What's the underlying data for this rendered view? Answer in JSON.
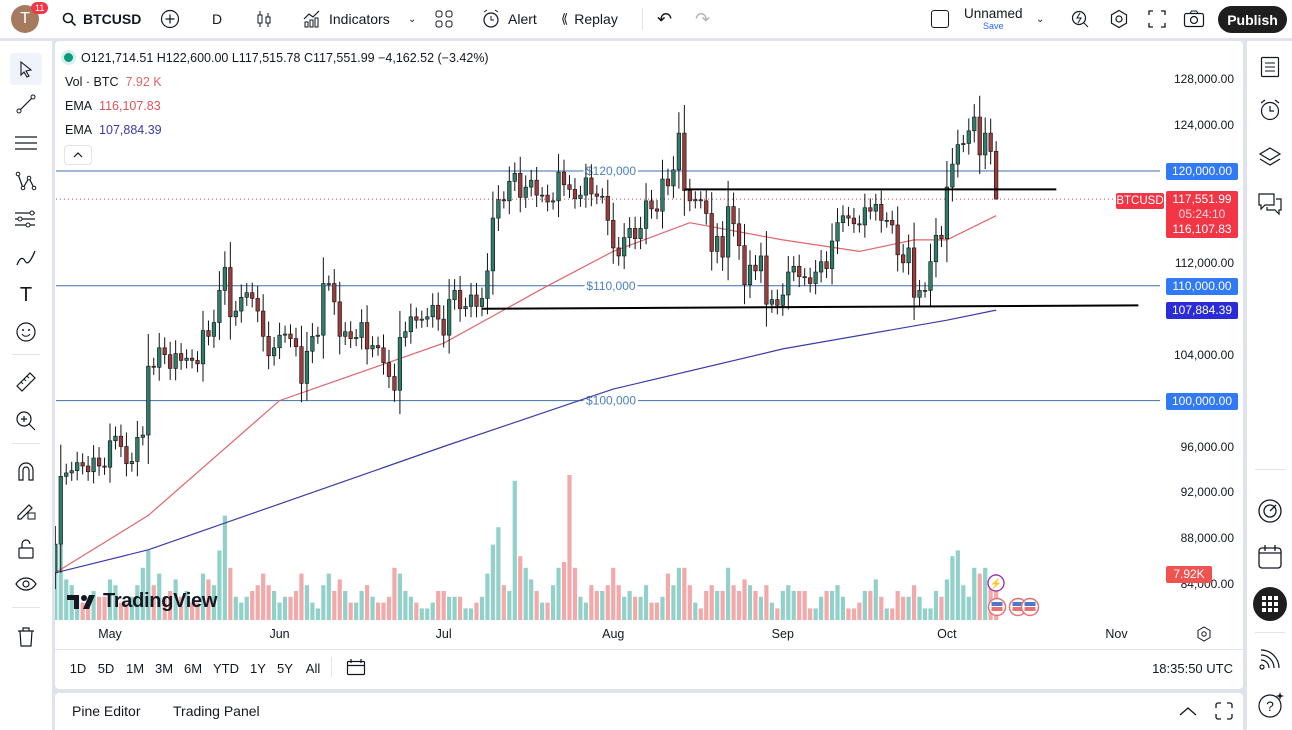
{
  "topbar": {
    "avatar_letter": "T",
    "notification_count": "11",
    "symbol": "BTCUSD",
    "interval": "D",
    "indicators_label": "Indicators",
    "alert_label": "Alert",
    "replay_label": "Replay",
    "layout_name": "Unnamed",
    "save_label": "Save",
    "publish_label": "Publish"
  },
  "legend": {
    "open": "O121,714.51",
    "high": "H122,600.00",
    "low": "L117,515.78",
    "close": "C117,551.99",
    "change": "−4,162.52 (−3.42%)",
    "vol_label": "Vol · BTC",
    "vol_value": "7.92 K",
    "ema1_label": "EMA",
    "ema1_value": "116,107.83",
    "ema2_label": "EMA",
    "ema2_value": "107,884.39"
  },
  "price_axis": {
    "ticks": [
      "128,000.00",
      "124,000.00",
      "112,000.00",
      "104,000.00",
      "96,000.00",
      "92,000.00",
      "88,000.00",
      "84,000.00"
    ],
    "tick_values": [
      128000,
      124000,
      112000,
      104000,
      96000,
      92000,
      88000,
      84000
    ],
    "level_badges": [
      {
        "label": "120,000.00",
        "value": 120000,
        "color": "#3179f5"
      },
      {
        "label": "110,000.00",
        "value": 110000,
        "color": "#3179f5"
      },
      {
        "label": "100,000.00",
        "value": 100000,
        "color": "#3179f5"
      },
      {
        "label": "107,884.39",
        "value": 107884.39,
        "color": "#2b2bd9"
      }
    ],
    "symbol_tag": "BTCUSD",
    "last_price": "117,551.99",
    "countdown": "05:24:10",
    "ema1_badge": "116,107.83",
    "volume_badge": "7.92K"
  },
  "time_axis": {
    "labels": [
      [
        "May",
        "May 1"
      ],
      [
        "Jun",
        "Jun 1"
      ],
      [
        "Jul",
        "Jul 1"
      ],
      [
        "Aug",
        "Aug 1"
      ],
      [
        "Sep",
        "Sep 1"
      ],
      [
        "Oct",
        "Oct 1"
      ],
      [
        "Nov",
        "Nov 1"
      ]
    ]
  },
  "drawings": {
    "horizontal_levels": [
      {
        "label": "$120,000",
        "value": 120000
      },
      {
        "label": "$110,000",
        "value": 110000
      },
      {
        "label": "$100,000",
        "value": 100000
      }
    ],
    "trendlines": [
      {
        "from": [
          "Aug 14",
          118400
        ],
        "to": [
          "Oct 21",
          118400
        ]
      },
      {
        "from": [
          "Jul 8",
          108000
        ],
        "to": [
          "Nov 5",
          108300
        ]
      }
    ]
  },
  "bottom_bar": {
    "ranges": [
      "1D",
      "5D",
      "1M",
      "3M",
      "6M",
      "YTD",
      "1Y",
      "5Y",
      "All"
    ],
    "clock": "18:35:50 UTC"
  },
  "bottom_panel": {
    "pine_editor": "Pine Editor",
    "trading_panel": "Trading Panel"
  },
  "watermark": "TradingView",
  "colors": {
    "up": "#2e7d6b",
    "down": "#9b3b3b",
    "vol_up": "#92d1c9",
    "vol_down": "#f2a9a9",
    "ema_fast": "#e0646b",
    "ema_slow": "#3b3ba8",
    "level": "#3d6fa8",
    "accent": "#2962ff",
    "last_price": "#f23645"
  },
  "chart_data": {
    "type": "candlestick",
    "symbol": "BTCUSD",
    "interval": "D",
    "last_bar": {
      "open": 121714.51,
      "high": 122600.0,
      "low": 117515.78,
      "close": 117551.99
    },
    "months": [
      {
        "month": "Apr",
        "start_day": 21,
        "closes": [
          87500,
          93400,
          93700,
          93900,
          94600,
          94300,
          93800,
          95000,
          94300,
          94200
        ],
        "volume_k": [
          9,
          13,
          7,
          6,
          4,
          3,
          3,
          5,
          4,
          4
        ]
      },
      {
        "month": "May",
        "start_day": 1,
        "closes": [
          96500,
          96900,
          96000,
          94500,
          94700,
          96800,
          97000,
          103000,
          102900,
          104600,
          104000,
          102800,
          104100,
          103500,
          103700,
          103500,
          103200,
          106100,
          105600,
          106800,
          109600,
          111600,
          107300,
          107800,
          109000,
          109400,
          108900,
          107800,
          105600,
          103900,
          104600
        ],
        "volume_k": [
          7,
          6,
          3,
          3,
          4,
          6,
          9,
          12,
          6,
          8,
          4,
          5,
          7,
          4,
          5,
          3,
          3,
          8,
          7,
          6,
          12,
          18,
          9,
          4,
          3,
          4,
          5,
          6,
          8,
          6,
          5
        ]
      },
      {
        "month": "Jun",
        "start_day": 1,
        "closes": [
          105700,
          105800,
          105400,
          104700,
          101500,
          104300,
          105600,
          105700,
          110200,
          110200,
          108600,
          105600,
          106000,
          105400,
          105500,
          106800,
          104500,
          104800,
          104600,
          103300,
          102100,
          100900,
          105500,
          106000,
          107300,
          107000,
          107100,
          107300,
          108300,
          107100
        ],
        "volume_k": [
          3,
          4,
          4,
          5,
          8,
          6,
          3,
          2,
          6,
          8,
          5,
          7,
          5,
          3,
          3,
          5,
          6,
          4,
          3,
          3,
          4,
          9,
          8,
          5,
          4,
          3,
          2,
          2,
          3,
          5
        ]
      },
      {
        "month": "Jul",
        "start_day": 1,
        "closes": [
          105700,
          108800,
          109600,
          108000,
          108200,
          109200,
          108200,
          108900,
          111300,
          115900,
          117500,
          117400,
          119100,
          119800,
          117700,
          118600,
          119200,
          117900,
          117900,
          117300,
          117400,
          119900,
          118800,
          118400,
          117600,
          117900,
          119400,
          118000,
          117800,
          117800,
          115700
        ],
        "volume_k": [
          5,
          4,
          4,
          4,
          2,
          2,
          3,
          4,
          8,
          13,
          16,
          6,
          5,
          24,
          11,
          9,
          7,
          5,
          3,
          3,
          6,
          9,
          10,
          25,
          9,
          4,
          3,
          6,
          5,
          5,
          6
        ]
      },
      {
        "month": "Aug",
        "start_day": 1,
        "closes": [
          113300,
          112600,
          114200,
          115000,
          114100,
          115000,
          117400,
          116700,
          116500,
          119300,
          118700,
          120100,
          123300,
          118300,
          117400,
          117500,
          117400,
          116300,
          113000,
          114300,
          112500,
          116900,
          115400,
          113500,
          110100,
          111800,
          111300,
          112600,
          108400,
          108800,
          108300
        ],
        "volume_k": [
          9,
          6,
          4,
          5,
          4,
          4,
          6,
          3,
          3,
          4,
          8,
          6,
          9,
          9,
          6,
          3,
          2,
          5,
          6,
          5,
          5,
          9,
          6,
          5,
          7,
          6,
          5,
          4,
          6,
          3,
          2
        ]
      },
      {
        "month": "Sep",
        "start_day": 1,
        "closes": [
          109200,
          111200,
          111700,
          110800,
          110700,
          110200,
          111200,
          112100,
          111500,
          113900,
          115500,
          116100,
          115900,
          115400,
          115300,
          116800,
          116500,
          117100,
          115700,
          115700,
          115300,
          112700,
          112000,
          113300,
          109000,
          109600,
          109600,
          112100,
          114400,
          114100
        ],
        "volume_k": [
          5,
          6,
          5,
          5,
          5,
          2,
          2,
          4,
          5,
          5,
          6,
          4,
          2,
          2,
          3,
          5,
          5,
          7,
          4,
          2,
          2,
          5,
          4,
          4,
          6,
          4,
          2,
          2,
          5,
          4
        ]
      },
      {
        "month": "Oct",
        "start_day": 1,
        "closes": [
          118600,
          120600,
          122300,
          122400,
          123500,
          124700,
          121400,
          123300,
          121700,
          117551.99
        ],
        "volume_k": [
          7,
          11,
          12,
          6,
          4,
          9,
          8,
          9,
          7,
          7.92
        ]
      }
    ],
    "ema_fast": [
      [
        "Apr 21",
        85000
      ],
      [
        "May 8",
        90000
      ],
      [
        "Jun 1",
        100000
      ],
      [
        "Jul 1",
        105000
      ],
      [
        "Jul 20",
        110000
      ],
      [
        "Aug 1",
        113000
      ],
      [
        "Aug 15",
        115500
      ],
      [
        "Sep 1",
        114000
      ],
      [
        "Sep 15",
        113000
      ],
      [
        "Sep 25",
        114000
      ],
      [
        "Oct 1",
        114000
      ],
      [
        "Oct 10",
        116107.83
      ]
    ],
    "ema_slow": [
      [
        "Apr 21",
        85000
      ],
      [
        "May 8",
        87000
      ],
      [
        "Jun 1",
        91000
      ],
      [
        "Jul 1",
        96000
      ],
      [
        "Aug 1",
        101000
      ],
      [
        "Sep 1",
        104500
      ],
      [
        "Oct 1",
        107000
      ],
      [
        "Oct 10",
        107884.39
      ]
    ],
    "ylim": [
      82000,
      130000
    ]
  }
}
